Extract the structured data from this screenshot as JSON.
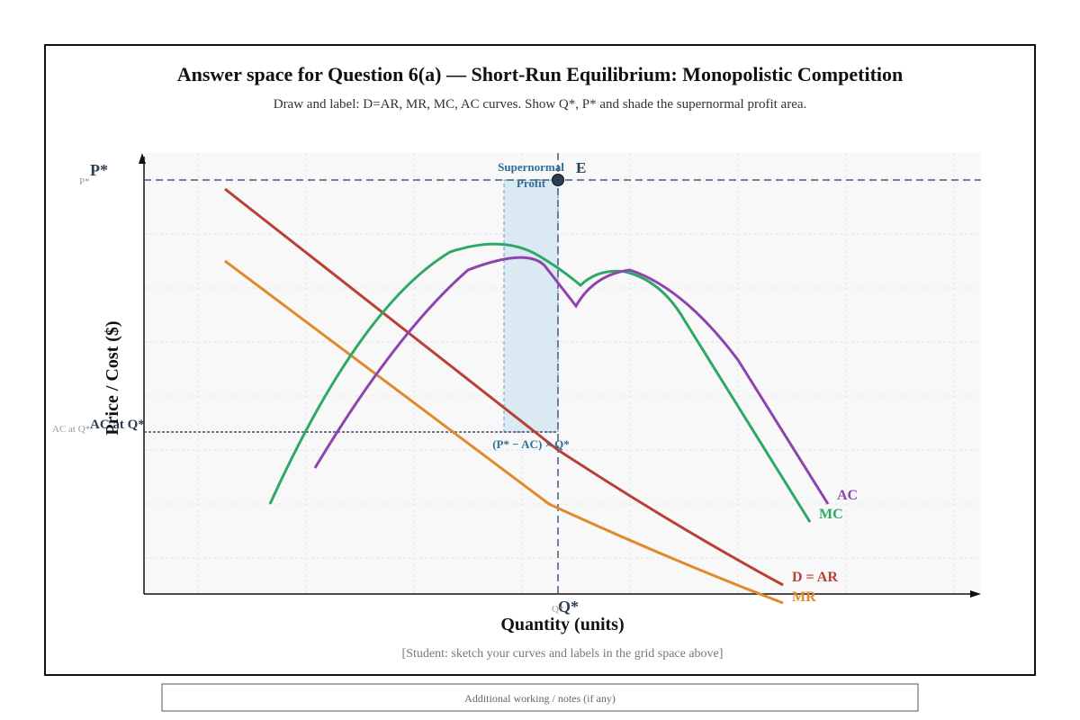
{
  "header": {
    "title": "Answer space for Question 6(a) — Short-Run Equilibrium: Monopolistic Competition",
    "subtitle": "Draw and label: D=AR, MR, MC, AC curves. Show Q*, P* and shade the supernormal profit area."
  },
  "diagram": {
    "y_label": "Price / Cost ($)",
    "x_label": "Quantity (units)",
    "price_marker": "P*",
    "price_marker_small": "P*",
    "ac_marker": "AC at Q*",
    "ac_marker_small": "AC at Q*",
    "quantity_marker": "Q*",
    "quantity_marker_small": "Q*",
    "equilibrium_label": "E",
    "profit_label": [
      "Supernormal",
      "Profit"
    ],
    "profit_formula": "(P* − AC) × Q*",
    "curves": {
      "ac": "AC",
      "mc": "MC",
      "demand": "D = AR",
      "mr": "MR"
    }
  },
  "footer": {
    "note": "[Student: sketch your curves and labels in the grid space above]"
  },
  "notes_box": {
    "label": "Additional working / notes (if any)"
  }
}
